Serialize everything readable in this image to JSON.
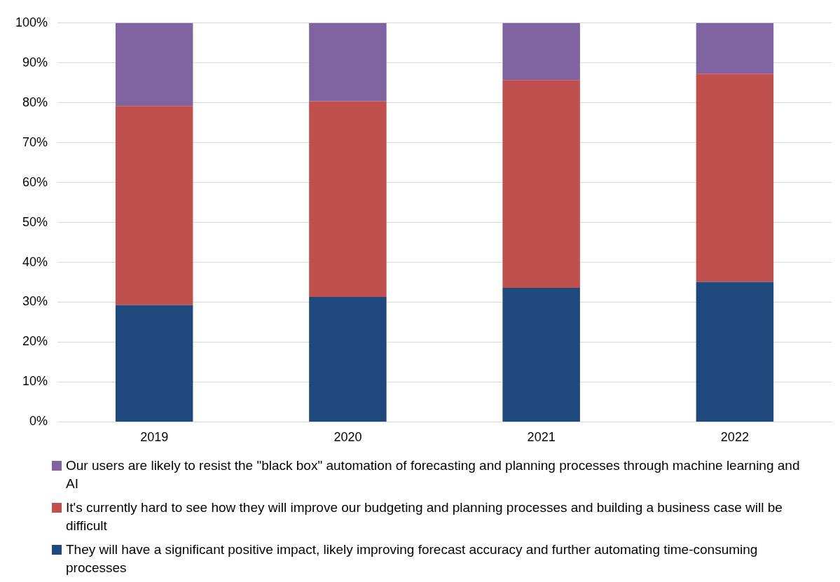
{
  "chart_data": {
    "type": "bar",
    "stacked": true,
    "categories": [
      "2019",
      "2020",
      "2021",
      "2022"
    ],
    "series": [
      {
        "name": "They will have a significant positive impact, likely improving forecast accuracy and further automating time-consuming processes",
        "color": "#1f497d",
        "values": [
          29.3,
          31.3,
          33.6,
          35.1
        ]
      },
      {
        "name": "It's currently hard to see how they will improve our budgeting and planning processes and building a business case will be difficult",
        "color": "#c0504d",
        "values": [
          49.9,
          49.1,
          52.1,
          52.2
        ]
      },
      {
        "name": "Our users are likely to resist the \"black box\" automation of forecasting and planning processes through machine learning and AI",
        "color": "#8064a2",
        "values": [
          20.8,
          19.6,
          14.3,
          12.7
        ]
      }
    ],
    "ylim": [
      0,
      100
    ],
    "yticks": [
      {
        "value": 0,
        "label": "0%"
      },
      {
        "value": 10,
        "label": "10%"
      },
      {
        "value": 20,
        "label": "20%"
      },
      {
        "value": 30,
        "label": "30%"
      },
      {
        "value": 40,
        "label": "40%"
      },
      {
        "value": 50,
        "label": "50%"
      },
      {
        "value": 60,
        "label": "60%"
      },
      {
        "value": 70,
        "label": "70%"
      },
      {
        "value": 80,
        "label": "80%"
      },
      {
        "value": 90,
        "label": "90%"
      },
      {
        "value": 100,
        "label": "100%"
      }
    ],
    "grid": "y",
    "legend": "bottom"
  }
}
